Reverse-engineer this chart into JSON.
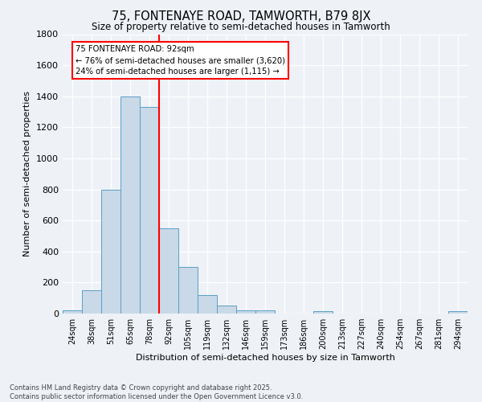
{
  "title1": "75, FONTENAYE ROAD, TAMWORTH, B79 8JX",
  "title2": "Size of property relative to semi-detached houses in Tamworth",
  "xlabel": "Distribution of semi-detached houses by size in Tamworth",
  "ylabel": "Number of semi-detached properties",
  "bin_labels": [
    "24sqm",
    "38sqm",
    "51sqm",
    "65sqm",
    "78sqm",
    "92sqm",
    "105sqm",
    "119sqm",
    "132sqm",
    "146sqm",
    "159sqm",
    "173sqm",
    "186sqm",
    "200sqm",
    "213sqm",
    "227sqm",
    "240sqm",
    "254sqm",
    "267sqm",
    "281sqm",
    "294sqm"
  ],
  "bar_values": [
    20,
    150,
    800,
    1400,
    1330,
    550,
    300,
    120,
    50,
    20,
    20,
    0,
    0,
    15,
    0,
    0,
    0,
    0,
    0,
    0,
    15
  ],
  "bar_color": "#c9d9e8",
  "bar_edge_color": "#5a9fc8",
  "vline_color": "red",
  "annotation_title": "75 FONTENAYE ROAD: 92sqm",
  "annotation_line1": "← 76% of semi-detached houses are smaller (3,620)",
  "annotation_line2": "24% of semi-detached houses are larger (1,115) →",
  "annotation_box_color": "white",
  "annotation_box_edge_color": "red",
  "ylim": [
    0,
    1800
  ],
  "yticks": [
    0,
    200,
    400,
    600,
    800,
    1000,
    1200,
    1400,
    1600,
    1800
  ],
  "footer1": "Contains HM Land Registry data © Crown copyright and database right 2025.",
  "footer2": "Contains public sector information licensed under the Open Government Licence v3.0.",
  "bg_color": "#eef2f7"
}
